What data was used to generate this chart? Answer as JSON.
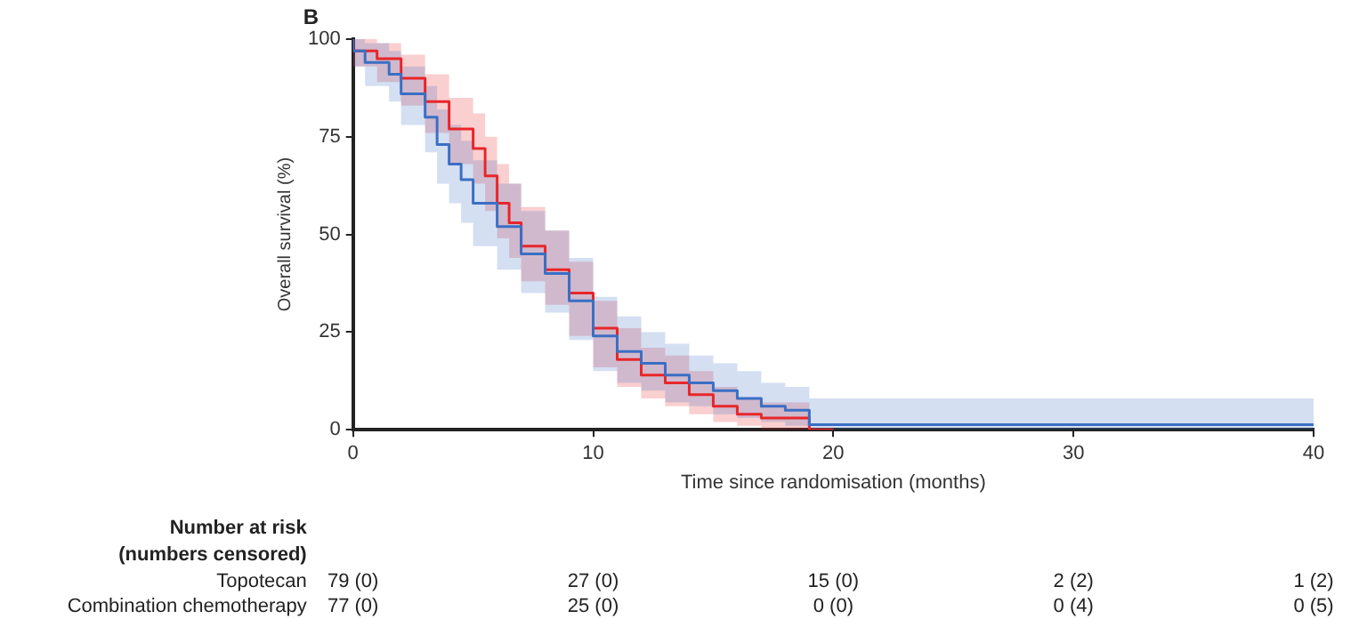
{
  "chart_data": {
    "type": "step",
    "title": "B",
    "xlabel": "Time since randomisation (months)",
    "ylabel": "Overall survival (%)",
    "xlim": [
      0,
      40
    ],
    "xticks": [
      0,
      10,
      20,
      30,
      40
    ],
    "ylim": [
      0,
      100
    ],
    "yticks": [
      0,
      25,
      50,
      75,
      100
    ],
    "grid": false,
    "legend": false,
    "marker": "none",
    "line_style": "solid",
    "series": [
      {
        "color": "#3a6fc4",
        "x": [
          0,
          0.5,
          1.5,
          2,
          3,
          3.5,
          4,
          4.5,
          5,
          6,
          7,
          8,
          9,
          10,
          11,
          12,
          13,
          14,
          15,
          16,
          17,
          18,
          19,
          20,
          40
        ],
        "values": [
          100,
          97,
          94,
          91,
          86,
          80,
          73,
          68,
          64,
          58,
          52,
          45,
          40,
          33,
          24,
          20,
          17,
          14,
          12,
          10,
          8,
          6,
          5,
          1.3,
          1.3
        ],
        "lower": [
          100,
          93,
          88,
          84,
          78,
          71,
          63,
          58,
          53,
          47,
          41,
          35,
          30,
          23,
          15,
          12,
          10,
          7,
          6,
          4,
          3,
          2,
          1,
          0,
          0
        ],
        "upper": [
          100,
          100,
          99,
          97,
          93,
          88,
          82,
          78,
          74,
          69,
          63,
          56,
          51,
          44,
          34,
          29,
          25,
          22,
          19,
          17,
          15,
          12,
          11,
          8,
          8
        ]
      },
      {
        "color": "#e8262a",
        "x": [
          0,
          1,
          2,
          3,
          4,
          5,
          5.5,
          6,
          6.5,
          7,
          8,
          9,
          10,
          11,
          12,
          13,
          14,
          15,
          16,
          17,
          19,
          20
        ],
        "values": [
          100,
          97,
          95,
          90,
          84,
          77,
          72,
          65,
          58,
          53,
          47,
          41,
          35,
          26,
          18,
          14,
          12,
          9,
          6,
          4,
          3,
          0
        ],
        "lower": [
          100,
          93,
          89,
          83,
          76,
          68,
          63,
          56,
          49,
          44,
          38,
          32,
          24,
          16,
          11,
          8,
          6,
          4,
          2,
          1,
          0,
          0
        ],
        "upper": [
          100,
          100,
          99,
          96,
          91,
          85,
          81,
          75,
          68,
          63,
          57,
          51,
          43,
          33,
          26,
          21,
          19,
          15,
          11,
          8,
          7,
          0
        ]
      }
    ],
    "annotations": [
      "Number at risk",
      "(numbers censored)",
      "Topotecan",
      "79 (0)",
      "27 (0)",
      "15 (0)",
      "2 (2)",
      "1 (2)",
      "Combination chemotherapy",
      "77 (0)",
      "25 (0)",
      "0 (0)",
      "0 (4)",
      "0 (5)"
    ]
  }
}
